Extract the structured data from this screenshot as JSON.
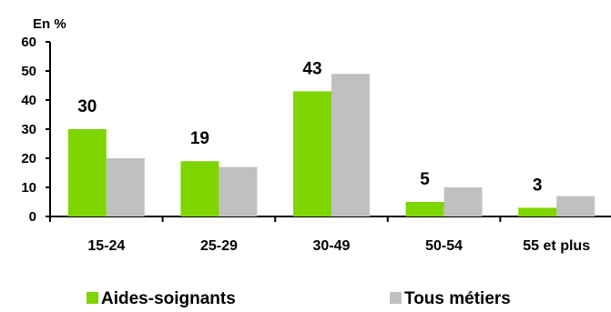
{
  "chart_data": {
    "type": "bar",
    "unit_label": "En %",
    "categories": [
      "15-24",
      "25-29",
      "30-49",
      "50-54",
      "55 et plus"
    ],
    "series": [
      {
        "name": "Aides-soignants",
        "color": "#7ED500",
        "values": [
          30,
          19,
          43,
          5,
          3
        ],
        "data_labels": [
          "30",
          "19",
          "43",
          "5",
          "3"
        ]
      },
      {
        "name": "Tous métiers",
        "color": "#C0C0C0",
        "values": [
          20,
          17,
          49,
          10,
          7
        ]
      }
    ],
    "yticks": [
      "0",
      "10",
      "20",
      "30",
      "40",
      "50",
      "60"
    ],
    "ylim": [
      0,
      60
    ],
    "grid": false,
    "legend_position": "bottom"
  }
}
